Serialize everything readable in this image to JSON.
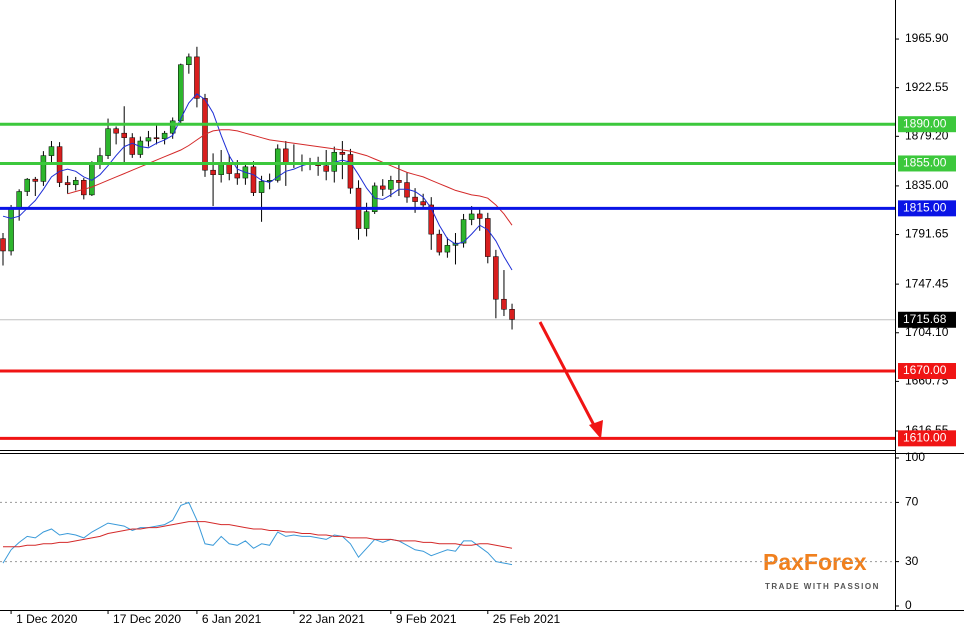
{
  "chart_data": [
    {
      "type": "candlestick",
      "categories": [
        null,
        "1 Dec 2020",
        null,
        null,
        null,
        null,
        null,
        null,
        null,
        null,
        null,
        null,
        null,
        "17 Dec 2020",
        null,
        null,
        null,
        null,
        null,
        null,
        null,
        null,
        null,
        null,
        "6 Jan 2021",
        null,
        null,
        null,
        null,
        null,
        null,
        null,
        null,
        null,
        null,
        null,
        "22 Jan 2021",
        null,
        null,
        null,
        null,
        null,
        null,
        null,
        null,
        null,
        null,
        null,
        "9 Feb 2021",
        null,
        null,
        null,
        null,
        null,
        null,
        null,
        null,
        null,
        null,
        null,
        "25 Feb 2021",
        null,
        null,
        null
      ],
      "open": [
        1788,
        1777,
        1815,
        1830,
        1841,
        1839,
        1862,
        1870,
        1838,
        1836,
        1840,
        1827,
        1854,
        1862,
        1886,
        1882,
        1878,
        1863,
        1875,
        1878,
        1877,
        1882,
        1893,
        1943,
        1950,
        1913,
        1849,
        1845,
        1856,
        1846,
        1842,
        1852,
        1829,
        1839,
        1840,
        1868,
        1856,
        1855,
        1856,
        1855,
        1853,
        1848,
        1865,
        1863,
        1833,
        1797,
        1812,
        1835,
        1832,
        1840,
        1838,
        1825,
        1821,
        1818,
        1792,
        1776,
        1782,
        1784,
        1805,
        1810,
        1806,
        1772,
        1734,
        1725
      ],
      "high": [
        1793,
        1818,
        1832,
        1842,
        1843,
        1866,
        1875,
        1874,
        1844,
        1843,
        1842,
        1857,
        1869,
        1895,
        1888,
        1906,
        1882,
        1879,
        1884,
        1889,
        1884,
        1896,
        1944,
        1953,
        1959,
        1917,
        1864,
        1867,
        1863,
        1858,
        1855,
        1857,
        1844,
        1846,
        1872,
        1875,
        1872,
        1863,
        1860,
        1861,
        1867,
        1870,
        1875,
        1868,
        1840,
        1820,
        1838,
        1841,
        1844,
        1855,
        1847,
        1833,
        1828,
        1825,
        1796,
        1789,
        1793,
        1810,
        1817,
        1815,
        1811,
        1778,
        1760,
        1730
      ],
      "low": [
        1764,
        1773,
        1804,
        1826,
        1826,
        1835,
        1855,
        1834,
        1828,
        1831,
        1823,
        1826,
        1850,
        1859,
        1872,
        1856,
        1860,
        1860,
        1870,
        1872,
        1872,
        1877,
        1890,
        1935,
        1905,
        1843,
        1817,
        1838,
        1840,
        1836,
        1836,
        1826,
        1803,
        1832,
        1838,
        1835,
        1851,
        1848,
        1849,
        1844,
        1840,
        1838,
        1841,
        1828,
        1787,
        1790,
        1810,
        1826,
        1825,
        1826,
        1820,
        1811,
        1815,
        1778,
        1773,
        1771,
        1765,
        1780,
        1800,
        1795,
        1766,
        1717,
        1719,
        1707
      ],
      "close": [
        1777,
        1815,
        1830,
        1841,
        1839,
        1862,
        1870,
        1838,
        1836,
        1840,
        1827,
        1854,
        1862,
        1886,
        1882,
        1878,
        1863,
        1875,
        1878,
        1877,
        1882,
        1893,
        1943,
        1950,
        1913,
        1849,
        1845,
        1856,
        1846,
        1842,
        1852,
        1829,
        1839,
        1840,
        1868,
        1856,
        1855,
        1856,
        1855,
        1853,
        1848,
        1865,
        1863,
        1833,
        1797,
        1812,
        1835,
        1832,
        1840,
        1838,
        1825,
        1821,
        1818,
        1792,
        1776,
        1782,
        1784,
        1805,
        1810,
        1806,
        1772,
        1734,
        1725,
        1716
      ],
      "up_color": "#2db52d",
      "down_color": "#d81e1e",
      "series": [
        {
          "color": "#1f2fd6",
          "values": [
            1808,
            1806,
            1808,
            1815,
            1822,
            1832,
            1843,
            1848,
            1850,
            1848,
            1843,
            1840,
            1845,
            1853,
            1862,
            1870,
            1873,
            1870,
            1869,
            1873,
            1876,
            1880,
            1895,
            1909,
            1917,
            1912,
            1900,
            1880,
            1862,
            1850,
            1847,
            1845,
            1840,
            1838,
            1843,
            1848,
            1850,
            1853,
            1855,
            1856,
            1854,
            1856,
            1858,
            1856,
            1845,
            1833,
            1824,
            1823,
            1827,
            1832,
            1832,
            1830,
            1825,
            1815,
            1800,
            1788,
            1783,
            1785,
            1792,
            1800,
            1796,
            1786,
            1772,
            1760
          ]
        },
        {
          "color": "#d42a2a",
          "values": [
            null,
            null,
            null,
            null,
            null,
            null,
            null,
            null,
            1828,
            1830,
            1832,
            1834,
            1837,
            1840,
            1843,
            1846,
            1849,
            1852,
            1855,
            1858,
            1861,
            1864,
            1867,
            1871,
            1876,
            1881,
            1884,
            1885,
            1885,
            1884,
            1882,
            1880,
            1878,
            1876,
            1875,
            1874,
            1873,
            1872,
            1871,
            1870,
            1869,
            1868,
            1867,
            1866,
            1864,
            1862,
            1859,
            1856,
            1853,
            1850,
            1847,
            1845,
            1843,
            1840,
            1837,
            1834,
            1831,
            1829,
            1827,
            1826,
            1824,
            1818,
            1810,
            1800
          ]
        }
      ],
      "ylim": [
        1599.6,
        2000.7
      ],
      "yticks": [
        {
          "value": 1965.9,
          "label": "1965.90"
        },
        {
          "value": 1922.55,
          "label": "1922.55"
        },
        {
          "value": 1879.2,
          "label": "1879.20"
        },
        {
          "value": 1835,
          "label": "1835.00"
        },
        {
          "value": 1791.65,
          "label": "1791.65"
        },
        {
          "value": 1747.45,
          "label": "1747.45"
        },
        {
          "value": 1704.1,
          "label": "1704.10"
        },
        {
          "value": 1660.75,
          "label": "1660.75"
        },
        {
          "value": 1616.55,
          "label": "1616.55"
        }
      ],
      "levels": [
        {
          "value": 1890,
          "label": "1890.00",
          "color": "#3cc83c"
        },
        {
          "value": 1855,
          "label": "1855.00",
          "color": "#3cc83c"
        },
        {
          "value": 1815,
          "label": "1815.00",
          "color": "#0a14e6"
        },
        {
          "value": 1670,
          "label": "1670.00",
          "color": "#f01414"
        },
        {
          "value": 1610,
          "label": "1610.00",
          "color": "#f01414"
        }
      ],
      "last_price": 1715.68
    },
    {
      "type": "line",
      "series": [
        {
          "color": "#3a9ad9",
          "values": [
            29,
            38,
            43,
            47,
            46,
            50,
            52,
            48,
            49,
            48,
            46,
            50,
            53,
            56,
            55,
            54,
            51,
            53,
            53,
            54,
            55,
            58,
            68,
            70,
            58,
            42,
            41,
            47,
            42,
            41,
            44,
            39,
            42,
            41,
            50,
            47,
            48,
            47,
            47,
            46,
            45,
            48,
            47,
            42,
            33,
            39,
            45,
            43,
            45,
            44,
            41,
            38,
            37,
            34,
            36,
            38,
            37,
            44,
            44,
            40,
            36,
            30,
            29,
            28
          ]
        },
        {
          "color": "#d42a2a",
          "values": [
            40,
            40,
            40,
            41,
            41,
            42,
            42,
            43,
            43,
            44,
            45,
            46,
            47,
            49,
            50,
            51,
            52,
            52,
            53,
            53,
            54,
            55,
            56,
            57,
            57,
            57,
            56,
            55,
            55,
            54,
            53,
            52,
            52,
            51,
            51,
            50,
            50,
            49,
            49,
            48,
            48,
            47,
            47,
            46,
            46,
            46,
            45,
            45,
            45,
            44,
            44,
            44,
            43,
            43,
            42,
            42,
            42,
            41,
            41,
            42,
            42,
            41,
            40,
            39
          ]
        }
      ],
      "ylim": [
        0,
        100
      ],
      "yticks": [
        100,
        70,
        30,
        0
      ]
    }
  ],
  "brand": {
    "name": "PaxForex",
    "tagline": "TRADE WITH PASSION"
  }
}
